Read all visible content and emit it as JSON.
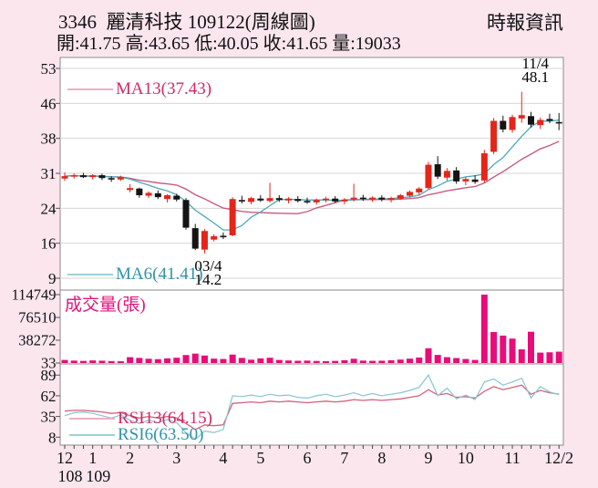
{
  "header": {
    "title": "3346  麗清科技 109122(周線圖)",
    "source": "時報資訊",
    "quote": "開:41.75 高:43.65 低:40.05 收:41.65 量:19033",
    "last_week": {
      "open": 41.75,
      "high": 43.65,
      "low": 40.05,
      "close": 41.65,
      "volume": 19033
    }
  },
  "legend": {
    "ma13": "MA13(37.43)",
    "ma6": "MA6(41.41)",
    "volume_label": "成交量(張)",
    "rsi13": "RSI13(64.15)",
    "rsi6": "RSI6(63.50)"
  },
  "annotations": {
    "low": {
      "line1": "03/4",
      "line2": "14.2",
      "week": 15
    },
    "high": {
      "line1": "11/4",
      "line2": "48.1",
      "week": 49
    }
  },
  "colors": {
    "background": "#fbe6ee",
    "panel": "#ffffff",
    "border": "#8a8a8a",
    "grid": "#d6d6d6",
    "text": "#111111",
    "candle_up": "#e3261a",
    "candle_down": "#141414",
    "ma13_line": "#c75d7d",
    "ma6_line": "#4aa9bc",
    "volume_bar": "#e80c7a",
    "rsi13_line": "#d4607e",
    "rsi6_line": "#86c6d2",
    "accent_crimson": "#d02a66",
    "accent_teal": "#2f93a8",
    "accent_magenta": "#e0147a",
    "swatch_pink": "#efaec5",
    "swatch_teal": "#9fd0da"
  },
  "chart_data": {
    "type": "candlestick",
    "panels": [
      "price+moving-averages",
      "volume",
      "rsi"
    ],
    "ma_periods": [
      6,
      13
    ],
    "price_axis": {
      "labels": [
        53,
        46,
        38,
        31,
        24,
        16,
        9
      ],
      "min": 9,
      "max": 53
    },
    "volume_axis": {
      "labels": [
        114749,
        76510,
        38272,
        33
      ],
      "max": 114749
    },
    "rsi_axis": {
      "labels": [
        89,
        62,
        35,
        8
      ],
      "min": 0,
      "max": 100
    },
    "x_axis": {
      "month_labels": [
        {
          "label": "12",
          "week": 0
        },
        {
          "label": "1",
          "week": 3
        },
        {
          "label": "2",
          "week": 7
        },
        {
          "label": "3",
          "week": 12
        },
        {
          "label": "4",
          "week": 17
        },
        {
          "label": "5",
          "week": 21
        },
        {
          "label": "6",
          "week": 26
        },
        {
          "label": "7",
          "week": 30
        },
        {
          "label": "8",
          "week": 34
        },
        {
          "label": "9",
          "week": 39
        },
        {
          "label": "10",
          "week": 43
        },
        {
          "label": "11",
          "week": 48
        },
        {
          "label": "12/2",
          "week": 53
        }
      ],
      "year_labels": [
        {
          "label": "108",
          "week": 0
        },
        {
          "label": "109",
          "week": 3
        }
      ]
    },
    "weeks": {
      "open": [
        29.9,
        30.4,
        30.6,
        30.2,
        30.6,
        30.0,
        29.7,
        27.5,
        27.8,
        26.3,
        26.8,
        25.6,
        26.3,
        25.4,
        19.5,
        15.0,
        17.1,
        17.9,
        18.0,
        25.4,
        25.0,
        25.7,
        25.2,
        25.8,
        25.3,
        25.6,
        25.2,
        24.9,
        25.4,
        25.7,
        25.1,
        25.5,
        25.9,
        25.5,
        25.9,
        25.4,
        25.7,
        26.3,
        27.0,
        27.9,
        32.9,
        30.1,
        31.6,
        29.3,
        29.7,
        29.5,
        35.5,
        42.0,
        40.1,
        42.5,
        43.0,
        41.1,
        42.4,
        41.75
      ],
      "high": [
        31.2,
        31.0,
        31.1,
        30.8,
        30.9,
        30.4,
        30.5,
        28.7,
        28.0,
        27.2,
        27.4,
        26.6,
        26.7,
        25.8,
        20.4,
        19.3,
        18.2,
        18.6,
        26.0,
        26.3,
        26.1,
        26.4,
        29.0,
        26.4,
        26.0,
        26.2,
        25.9,
        25.7,
        26.1,
        26.2,
        25.8,
        28.8,
        26.5,
        26.2,
        26.4,
        26.1,
        26.7,
        27.4,
        28.1,
        33.4,
        34.6,
        32.1,
        32.3,
        30.2,
        30.6,
        35.9,
        42.6,
        43.1,
        43.3,
        48.1,
        43.9,
        42.7,
        43.5,
        43.65
      ],
      "low": [
        29.4,
        29.9,
        30.0,
        29.7,
        29.6,
        29.2,
        29.4,
        27.0,
        25.9,
        25.8,
        25.6,
        24.9,
        25.1,
        19.2,
        14.9,
        14.2,
        16.7,
        17.2,
        17.8,
        24.7,
        24.5,
        25.0,
        24.9,
        25.0,
        24.7,
        24.9,
        24.6,
        24.4,
        24.9,
        24.8,
        24.5,
        25.1,
        25.2,
        25.0,
        25.1,
        24.9,
        25.4,
        25.9,
        26.5,
        27.6,
        29.8,
        29.5,
        28.8,
        28.5,
        28.8,
        29.1,
        35.0,
        39.6,
        39.5,
        41.6,
        40.6,
        40.3,
        41.5,
        40.05
      ],
      "close": [
        30.4,
        30.6,
        30.2,
        30.6,
        30.0,
        29.7,
        30.2,
        27.9,
        26.4,
        26.9,
        26.0,
        26.4,
        25.5,
        19.6,
        15.2,
        18.9,
        17.8,
        17.7,
        25.6,
        25.1,
        25.8,
        25.3,
        25.8,
        25.4,
        25.7,
        25.2,
        25.0,
        25.4,
        25.7,
        25.1,
        25.5,
        25.9,
        25.6,
        25.9,
        25.5,
        25.8,
        26.4,
        27.1,
        27.8,
        32.8,
        30.3,
        31.5,
        29.3,
        29.8,
        29.2,
        35.2,
        42.0,
        40.2,
        42.8,
        43.2,
        41.2,
        42.2,
        42.0,
        41.65
      ],
      "volume": [
        5200,
        4100,
        3600,
        4400,
        3900,
        3300,
        3000,
        9800,
        8600,
        7200,
        6500,
        7800,
        8900,
        13400,
        15800,
        12600,
        7400,
        6800,
        14200,
        8600,
        5600,
        7800,
        8900,
        5200,
        4300,
        3800,
        4100,
        3500,
        3200,
        3600,
        4800,
        7200,
        4100,
        3700,
        3900,
        4600,
        5800,
        7400,
        9200,
        24800,
        13600,
        9800,
        8400,
        6800,
        5200,
        114749,
        52000,
        46000,
        41000,
        23000,
        52500,
        17500,
        18000,
        19033
      ]
    },
    "rsi13": [
      42,
      43,
      43,
      42,
      41,
      39,
      40,
      36,
      33,
      35,
      33,
      35,
      33,
      26,
      18,
      24,
      23,
      24,
      52,
      53,
      54,
      53,
      55,
      54,
      55,
      54,
      53,
      54,
      55,
      54,
      55,
      57,
      56,
      57,
      56,
      57,
      58,
      60,
      62,
      70,
      63,
      65,
      60,
      61,
      59,
      68,
      74,
      70,
      73,
      76,
      64,
      69,
      66,
      64.15
    ],
    "rsi6": [
      36,
      40,
      41,
      39,
      36,
      33,
      37,
      30,
      26,
      30,
      27,
      31,
      27,
      14,
      5,
      16,
      14,
      18,
      62,
      61,
      63,
      61,
      64,
      62,
      63,
      60,
      59,
      62,
      64,
      61,
      63,
      66,
      62,
      65,
      62,
      64,
      66,
      69,
      73,
      89,
      62,
      72,
      58,
      63,
      57,
      80,
      84,
      76,
      80,
      85,
      59,
      74,
      67,
      63.5
    ]
  }
}
